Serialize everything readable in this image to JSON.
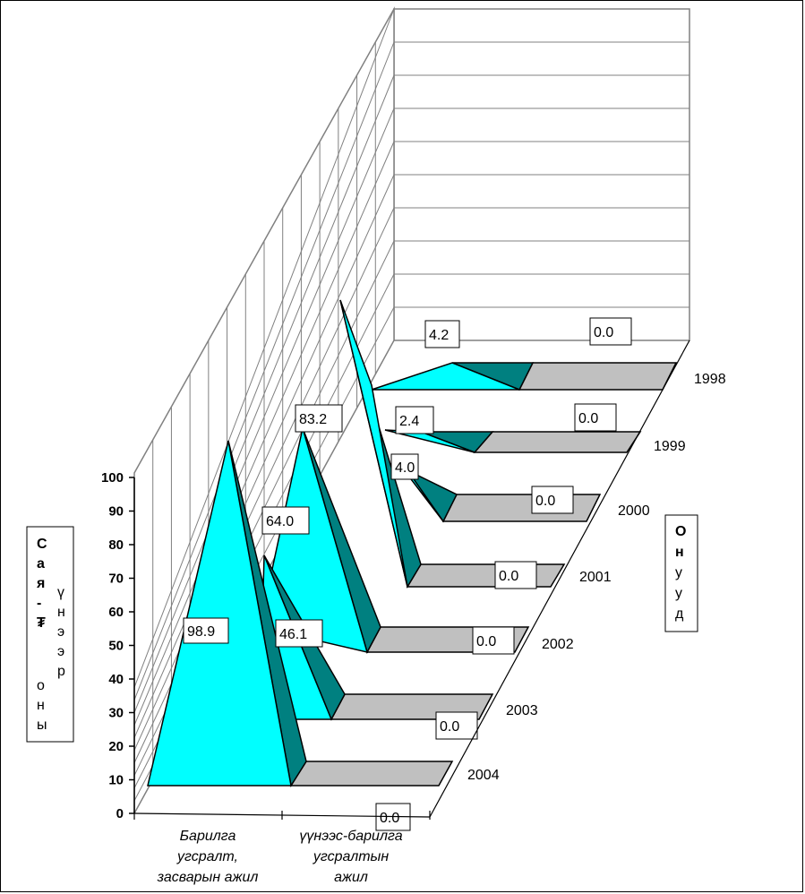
{
  "chart_data": {
    "type": "3d-pyramid-bar",
    "categories": [
      "Барилга угсралт, засварын ажил",
      "үүнээс-барилга угсралтын ажил"
    ],
    "category_lines": [
      [
        "Барилга",
        "угсралт,",
        "засварын ажил"
      ],
      [
        "үүнээс-барилга",
        "угсралтын",
        "ажил"
      ]
    ],
    "series": [
      {
        "name": "2004",
        "values": [
          98.9,
          0.0
        ]
      },
      {
        "name": "2003",
        "values": [
          64.0,
          46.1
        ]
      },
      {
        "name": "2002",
        "values": [
          83.2,
          0.0
        ]
      },
      {
        "name": "2001",
        "values": [
          83.2,
          0.0
        ]
      },
      {
        "name": "2000",
        "values": [
          4.0,
          0.0
        ]
      },
      {
        "name": "1999",
        "values": [
          2.4,
          0.0
        ]
      },
      {
        "name": "1998",
        "values": [
          4.2,
          0.0
        ]
      }
    ],
    "data_labels": [
      {
        "text": "98.9"
      },
      {
        "text": "64.0"
      },
      {
        "text": "46.1"
      },
      {
        "text": "83.2"
      },
      {
        "text": "4.0"
      },
      {
        "text": "2.4"
      },
      {
        "text": "4.2"
      },
      {
        "text": "0.0"
      },
      {
        "text": "0.0"
      },
      {
        "text": "0.0"
      },
      {
        "text": "0.0"
      },
      {
        "text": "0.0"
      },
      {
        "text": "0.0"
      },
      {
        "text": "0.0"
      }
    ],
    "z_ticks": [
      "1998",
      "1999",
      "2000",
      "2001",
      "2002",
      "2003",
      "2004"
    ],
    "y_ticks": [
      "0",
      "10",
      "20",
      "30",
      "40",
      "50",
      "60",
      "70",
      "80",
      "90",
      "100"
    ],
    "ylim": [
      0,
      100
    ],
    "y_axis_title_lines": [
      [
        "С",
        "а",
        "я",
        "-",
        "₮"
      ],
      [
        "о",
        "н",
        "ы"
      ],
      [
        "ү",
        "н",
        "э",
        "э",
        "р"
      ]
    ],
    "z_axis_title_lines": [
      "О",
      "н",
      "у",
      "у",
      "д"
    ],
    "colors": {
      "front": "#00ffff",
      "side": "#008080",
      "floor": "#c0c0c0",
      "grid": "#808080"
    },
    "grid": true
  }
}
